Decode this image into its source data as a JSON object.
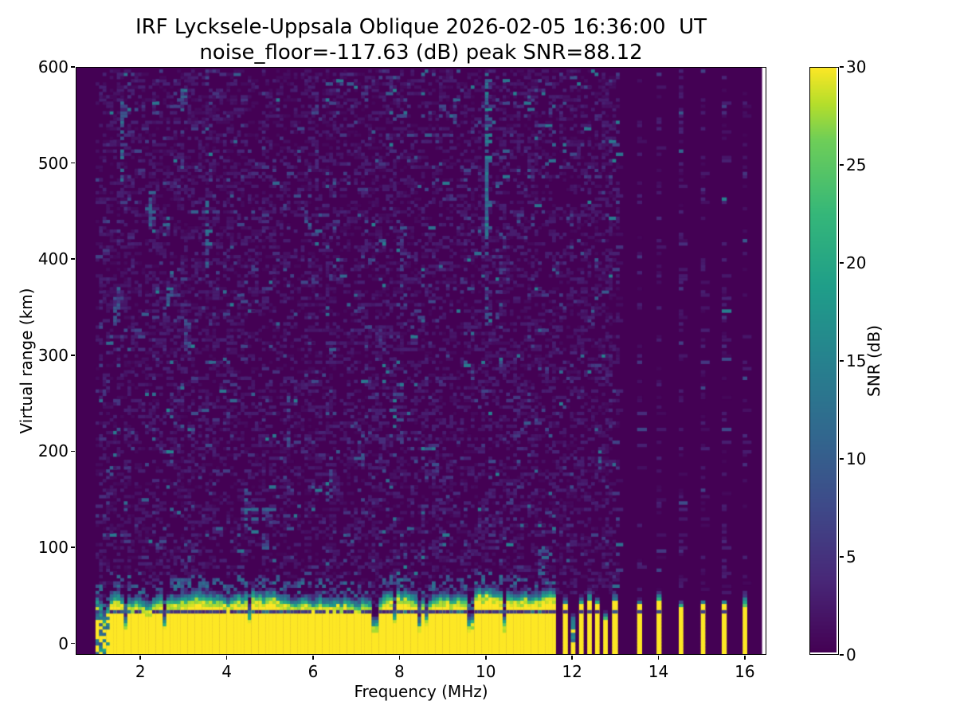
{
  "title": {
    "line1": "IRF Lycksele-Uppsala Oblique 2026-02-05 16:36:00  UT",
    "line2": "noise_floor=-117.63 (dB) peak SNR=88.12"
  },
  "axes": {
    "xlabel": "Frequency (MHz)",
    "ylabel": "Virtual range (km)",
    "x_ticks": [
      2,
      4,
      6,
      8,
      10,
      12,
      14,
      16
    ],
    "y_ticks": [
      0,
      100,
      200,
      300,
      400,
      500,
      600
    ]
  },
  "colorbar": {
    "label": "SNR (dB)",
    "ticks": [
      0,
      5,
      10,
      15,
      20,
      25,
      30
    ],
    "vmin": 0,
    "vmax": 30,
    "colormap": "viridis"
  },
  "chart_data": {
    "type": "heatmap",
    "title": "IRF Lycksele-Uppsala Oblique 2026-02-05 16:36:00  UT",
    "subtitle": "noise_floor=-117.63 (dB) peak SNR=88.12",
    "xlabel": "Frequency (MHz)",
    "ylabel": "Virtual range (km)",
    "xlim": [
      0.5,
      16.5
    ],
    "ylim": [
      -12,
      600
    ],
    "vmin": 0,
    "vmax": 30,
    "colormap": "viridis",
    "noise_floor_db": -117.63,
    "peak_snr_db": 88.12,
    "data_freq_start": 1.0,
    "data_freq_end": 16.4,
    "freq_step_mhz": 0.082,
    "range_gate_km": 3.33,
    "seed": 1337,
    "ground_band": {
      "freq_start": 1.0,
      "freq_end": 11.66,
      "snr_db": 30,
      "top_km_mean": 40,
      "top_km_min": 31,
      "top_km_max": 52,
      "fade_km": 13,
      "artifact_line_km": 32,
      "notch_freq": 7.45,
      "notch_top_km": 15,
      "ragged_left_edge_freq_end": 1.3
    },
    "stripes": [
      {
        "f": 11.84,
        "top_km": 38,
        "tip_km": 10,
        "weak": false,
        "w": 0.11
      },
      {
        "f": 12.02,
        "top_km": 22,
        "tip_km": 8,
        "weak": true,
        "w": 0.1
      },
      {
        "f": 12.21,
        "top_km": 40,
        "tip_km": 8,
        "weak": false,
        "w": 0.1
      },
      {
        "f": 12.4,
        "top_km": 42,
        "tip_km": 16,
        "weak": false,
        "w": 0.1
      },
      {
        "f": 12.58,
        "top_km": 40,
        "tip_km": 8,
        "weak": false,
        "w": 0.1
      },
      {
        "f": 12.77,
        "top_km": 24,
        "tip_km": 10,
        "weak": true,
        "w": 0.1
      },
      {
        "f": 12.99,
        "top_km": 42,
        "tip_km": 8,
        "weak": false,
        "w": 0.13
      },
      {
        "f": 13.56,
        "top_km": 38,
        "tip_km": 8,
        "weak": false,
        "w": 0.11
      },
      {
        "f": 14.01,
        "top_km": 42,
        "tip_km": 14,
        "weak": false,
        "w": 0.11
      },
      {
        "f": 14.52,
        "top_km": 36,
        "tip_km": 8,
        "weak": false,
        "w": 0.1
      },
      {
        "f": 15.03,
        "top_km": 38,
        "tip_km": 6,
        "weak": false,
        "w": 0.1
      },
      {
        "f": 15.52,
        "top_km": 40,
        "tip_km": 4,
        "weak": false,
        "w": 0.11
      },
      {
        "f": 16.0,
        "top_km": 36,
        "tip_km": 18,
        "weak": false,
        "w": 0.1
      }
    ],
    "noise_model": {
      "p_faint": 0.32,
      "v_faint": [
        0.5,
        3.2
      ],
      "p_mid": 0.05,
      "v_mid": [
        3.2,
        7.5
      ],
      "p_bright": 0.011,
      "v_bright": [
        7.5,
        15
      ],
      "p_stripe_col": 0.42,
      "speckle_above_band_p": 0.42,
      "speckle_above_band_v": [
        4,
        13
      ]
    },
    "streaks": [
      {
        "f": 10.0,
        "km0": 415,
        "km1": 598,
        "p": 0.8,
        "v0": 8,
        "v1": 16
      },
      {
        "f": 10.0,
        "km0": 300,
        "km1": 415,
        "p": 0.4,
        "v0": 4,
        "v1": 11
      },
      {
        "f": 1.56,
        "km0": 478,
        "km1": 566,
        "p": 0.6,
        "v0": 6,
        "v1": 13
      },
      {
        "f": 1.45,
        "km0": 330,
        "km1": 368,
        "p": 0.5,
        "v0": 5,
        "v1": 11
      },
      {
        "f": 2.2,
        "km0": 428,
        "km1": 468,
        "p": 0.55,
        "v0": 6,
        "v1": 12
      },
      {
        "f": 2.64,
        "km0": 350,
        "km1": 374,
        "p": 0.6,
        "v0": 8,
        "v1": 14
      },
      {
        "f": 2.95,
        "km0": 545,
        "km1": 580,
        "p": 0.45,
        "v0": 5,
        "v1": 11
      },
      {
        "f": 3.1,
        "km0": 290,
        "km1": 335,
        "p": 0.4,
        "v0": 5,
        "v1": 10
      },
      {
        "f": 3.52,
        "km0": 388,
        "km1": 458,
        "p": 0.5,
        "v0": 6,
        "v1": 13
      },
      {
        "f": 4.42,
        "km0": 118,
        "km1": 162,
        "p": 0.5,
        "v0": 6,
        "v1": 12
      },
      {
        "f": 4.9,
        "km0": 95,
        "km1": 140,
        "p": 0.4,
        "v0": 5,
        "v1": 11
      },
      {
        "f": 5.4,
        "km0": 198,
        "km1": 268,
        "p": 0.35,
        "v0": 4,
        "v1": 10
      },
      {
        "f": 6.1,
        "km0": 488,
        "km1": 530,
        "p": 0.4,
        "v0": 5,
        "v1": 10
      },
      {
        "f": 6.42,
        "km0": 138,
        "km1": 178,
        "p": 0.5,
        "v0": 6,
        "v1": 12
      },
      {
        "f": 7.1,
        "km0": 182,
        "km1": 218,
        "p": 0.4,
        "v0": 5,
        "v1": 10
      },
      {
        "f": 8.05,
        "km0": 350,
        "km1": 420,
        "p": 0.35,
        "v0": 4,
        "v1": 9
      },
      {
        "f": 8.6,
        "km0": 168,
        "km1": 202,
        "p": 0.4,
        "v0": 5,
        "v1": 10
      },
      {
        "f": 9.3,
        "km0": 540,
        "km1": 572,
        "p": 0.45,
        "v0": 5,
        "v1": 11
      },
      {
        "f": 11.3,
        "km0": 60,
        "km1": 95,
        "p": 0.5,
        "v0": 6,
        "v1": 12
      }
    ],
    "viridis_anchors": [
      [
        0.0,
        68,
        1,
        84
      ],
      [
        0.125,
        72,
        40,
        120
      ],
      [
        0.25,
        62,
        74,
        137
      ],
      [
        0.375,
        49,
        104,
        142
      ],
      [
        0.5,
        38,
        130,
        142
      ],
      [
        0.625,
        31,
        158,
        137
      ],
      [
        0.75,
        53,
        183,
        121
      ],
      [
        0.875,
        110,
        206,
        88
      ],
      [
        0.9375,
        181,
        222,
        43
      ],
      [
        1.0,
        253,
        231,
        37
      ]
    ]
  }
}
